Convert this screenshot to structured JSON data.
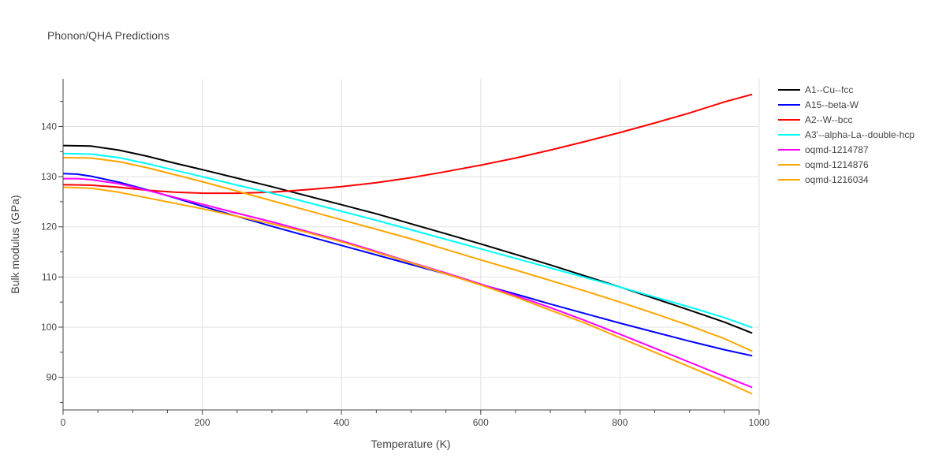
{
  "chart_data": {
    "type": "line",
    "title": "Phonon/QHA Predictions",
    "xlabel": "Temperature (K)",
    "ylabel": "Bulk modulus (GPa)",
    "xlim": [
      0,
      1000
    ],
    "ylim": [
      83.5,
      149.5
    ],
    "xticks": [
      0,
      200,
      400,
      600,
      800,
      1000
    ],
    "yticks": [
      90,
      100,
      110,
      120,
      130,
      140
    ],
    "grid": true,
    "legend_position": "top-right",
    "series": [
      {
        "name": "A1--Cu--fcc",
        "color": "#000000",
        "x": [
          0,
          40,
          80,
          120,
          160,
          200,
          250,
          300,
          350,
          400,
          450,
          500,
          550,
          600,
          650,
          700,
          750,
          800,
          850,
          900,
          950,
          990
        ],
        "y": [
          136.2,
          136.1,
          135.3,
          134.1,
          132.7,
          131.4,
          129.7,
          128.0,
          126.2,
          124.4,
          122.6,
          120.6,
          118.6,
          116.6,
          114.5,
          112.4,
          110.2,
          108.0,
          105.7,
          103.4,
          101.0,
          98.8
        ]
      },
      {
        "name": "A15--beta-W",
        "color": "#0000ff",
        "x": [
          0,
          20,
          40,
          80,
          120,
          160,
          200,
          250,
          300,
          350,
          400,
          450,
          500,
          550,
          600,
          650,
          700,
          750,
          800,
          850,
          900,
          950,
          990
        ],
        "y": [
          130.6,
          130.5,
          130.1,
          128.9,
          127.4,
          125.8,
          124.1,
          122.1,
          120.1,
          118.2,
          116.3,
          114.4,
          112.5,
          110.6,
          108.5,
          106.6,
          104.6,
          102.7,
          100.8,
          99.0,
          97.2,
          95.5,
          94.3
        ]
      },
      {
        "name": "A2--W--bcc",
        "color": "#ff0000",
        "x": [
          0,
          40,
          80,
          120,
          160,
          200,
          250,
          300,
          350,
          400,
          450,
          500,
          550,
          600,
          650,
          700,
          750,
          800,
          850,
          900,
          950,
          990
        ],
        "y": [
          128.4,
          128.3,
          127.9,
          127.3,
          126.9,
          126.7,
          126.7,
          126.9,
          127.4,
          128.0,
          128.8,
          129.8,
          131.0,
          132.3,
          133.7,
          135.3,
          137.0,
          138.8,
          140.7,
          142.7,
          144.9,
          146.4
        ]
      },
      {
        "name": "A3'--alpha-La--double-hcp",
        "color": "#00ffff",
        "x": [
          0,
          40,
          80,
          120,
          160,
          200,
          250,
          300,
          350,
          400,
          450,
          500,
          550,
          600,
          650,
          700,
          750,
          800,
          850,
          900,
          950,
          990
        ],
        "y": [
          134.6,
          134.5,
          133.8,
          132.6,
          131.3,
          130.0,
          128.3,
          126.7,
          124.9,
          123.1,
          121.3,
          119.4,
          117.5,
          115.6,
          113.7,
          111.8,
          109.9,
          108.0,
          106.0,
          104.0,
          101.9,
          99.9
        ]
      },
      {
        "name": "oqmd-1214787",
        "color": "#ff00ff",
        "x": [
          0,
          20,
          40,
          80,
          120,
          160,
          200,
          250,
          300,
          350,
          400,
          450,
          500,
          550,
          600,
          650,
          700,
          750,
          800,
          850,
          900,
          950,
          990
        ],
        "y": [
          129.6,
          129.6,
          129.4,
          128.6,
          127.3,
          125.9,
          124.5,
          122.7,
          121.0,
          119.1,
          117.2,
          115.1,
          112.9,
          110.8,
          108.6,
          106.3,
          103.9,
          101.3,
          98.6,
          95.8,
          93.0,
          90.2,
          88.0
        ]
      },
      {
        "name": "oqmd-1214876",
        "color": "#ffa500",
        "x": [
          0,
          40,
          80,
          120,
          160,
          200,
          250,
          300,
          350,
          400,
          450,
          500,
          550,
          600,
          650,
          700,
          750,
          800,
          850,
          900,
          950,
          990
        ],
        "y": [
          127.9,
          127.7,
          126.9,
          125.8,
          124.7,
          123.6,
          122.1,
          120.6,
          118.9,
          117.0,
          114.9,
          112.8,
          110.6,
          108.4,
          106.0,
          103.4,
          100.8,
          97.9,
          95.0,
          92.1,
          89.2,
          86.7
        ]
      },
      {
        "name": "oqmd-1216034",
        "color": "#ffa500",
        "x": [
          0,
          40,
          80,
          120,
          160,
          200,
          250,
          300,
          350,
          400,
          450,
          500,
          550,
          600,
          650,
          700,
          750,
          800,
          850,
          900,
          950,
          990
        ],
        "y": [
          133.8,
          133.7,
          133.0,
          131.8,
          130.4,
          129.0,
          127.1,
          125.2,
          123.3,
          121.4,
          119.5,
          117.6,
          115.5,
          113.4,
          111.4,
          109.3,
          107.2,
          105.0,
          102.7,
          100.3,
          97.7,
          95.2
        ]
      }
    ]
  }
}
